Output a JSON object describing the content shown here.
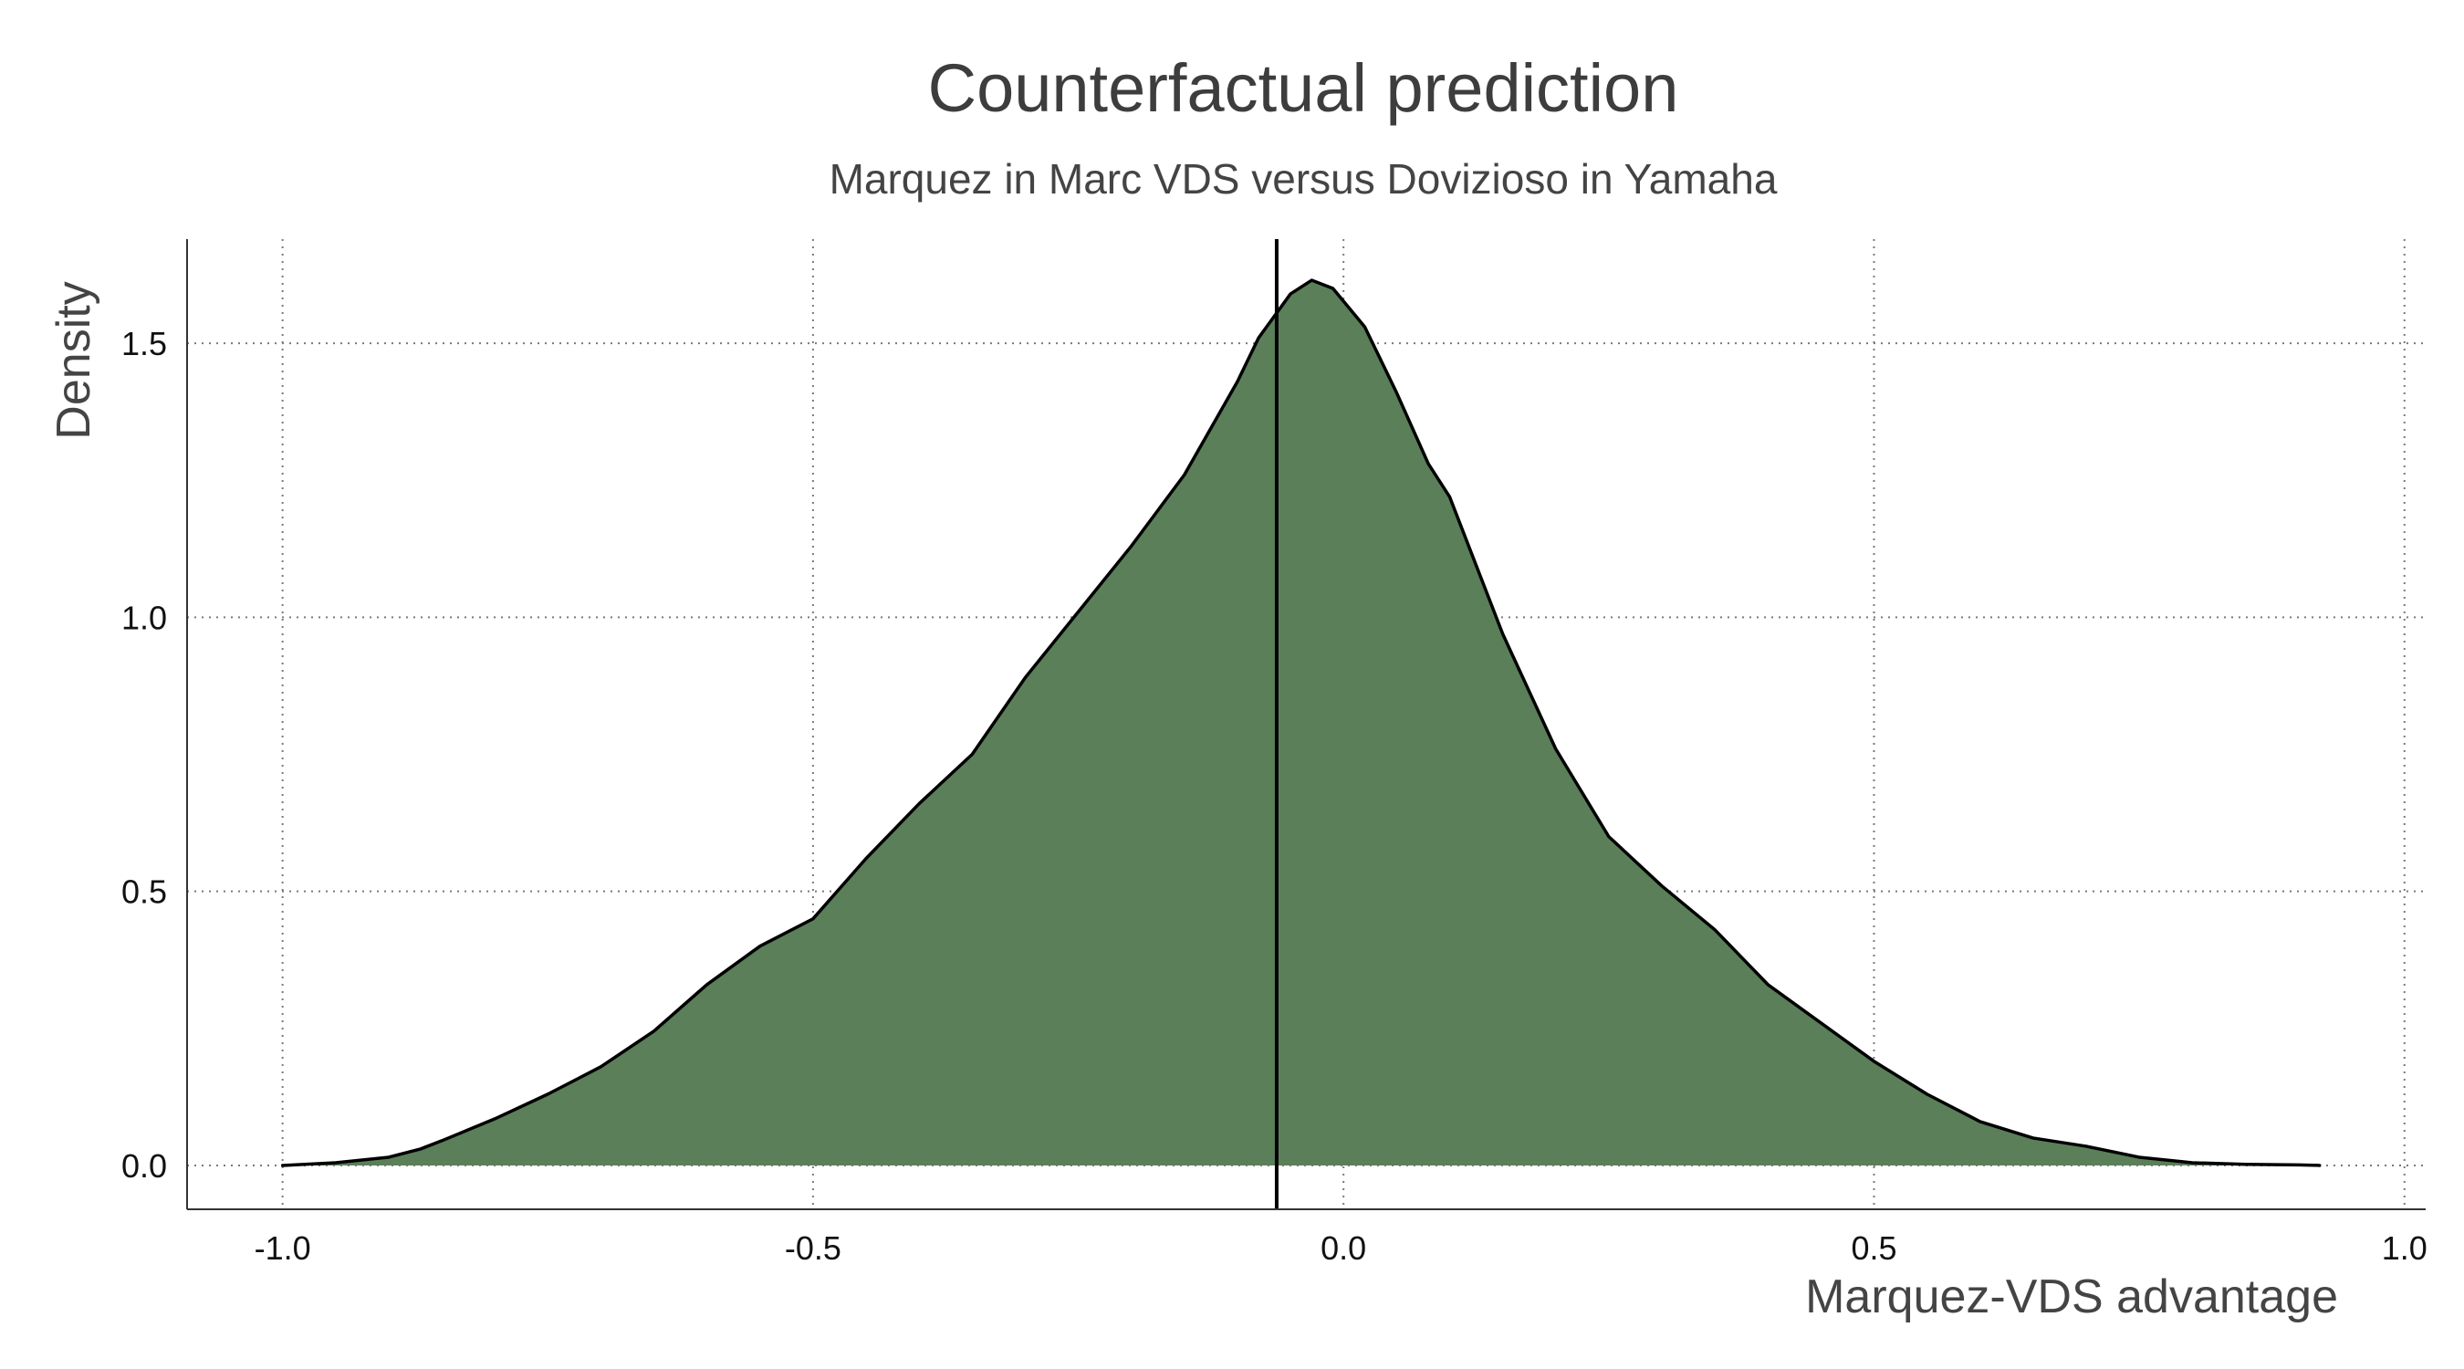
{
  "chart_data": {
    "type": "area",
    "title": "Counterfactual prediction",
    "subtitle": "Marquez in Marc VDS versus Dovizioso in Yamaha",
    "xlabel": "Marquez-VDS advantage",
    "ylabel": "Density",
    "xlim": [
      -1.09,
      1.02
    ],
    "ylim": [
      -0.08,
      1.69
    ],
    "x_ticks": [
      -1.0,
      -0.5,
      0.0,
      0.5,
      1.0
    ],
    "x_tick_labels": [
      "-1.0",
      "-0.5",
      "0.0",
      "0.5",
      "1.0"
    ],
    "y_ticks": [
      0.0,
      0.5,
      1.0,
      1.5
    ],
    "y_tick_labels": [
      "0.0",
      "0.5",
      "1.0",
      "1.5"
    ],
    "grid": true,
    "vline_x": -0.063,
    "fill_color": "#5a7f59",
    "line_color": "#000000",
    "x": [
      -1.0,
      -0.95,
      -0.9,
      -0.87,
      -0.85,
      -0.8,
      -0.75,
      -0.7,
      -0.65,
      -0.6,
      -0.55,
      -0.5,
      -0.45,
      -0.4,
      -0.35,
      -0.3,
      -0.25,
      -0.2,
      -0.15,
      -0.1,
      -0.08,
      -0.05,
      -0.03,
      -0.01,
      0.02,
      0.05,
      0.08,
      0.1,
      0.15,
      0.2,
      0.25,
      0.3,
      0.35,
      0.4,
      0.45,
      0.5,
      0.55,
      0.6,
      0.65,
      0.7,
      0.75,
      0.8,
      0.85,
      0.9,
      0.92
    ],
    "y": [
      0.0,
      0.005,
      0.015,
      0.03,
      0.045,
      0.085,
      0.13,
      0.18,
      0.245,
      0.33,
      0.4,
      0.45,
      0.56,
      0.66,
      0.75,
      0.89,
      1.01,
      1.13,
      1.26,
      1.43,
      1.51,
      1.59,
      1.615,
      1.6,
      1.53,
      1.41,
      1.28,
      1.22,
      0.97,
      0.76,
      0.6,
      0.51,
      0.43,
      0.33,
      0.26,
      0.19,
      0.13,
      0.08,
      0.05,
      0.035,
      0.015,
      0.005,
      0.002,
      0.001,
      0.0
    ]
  }
}
